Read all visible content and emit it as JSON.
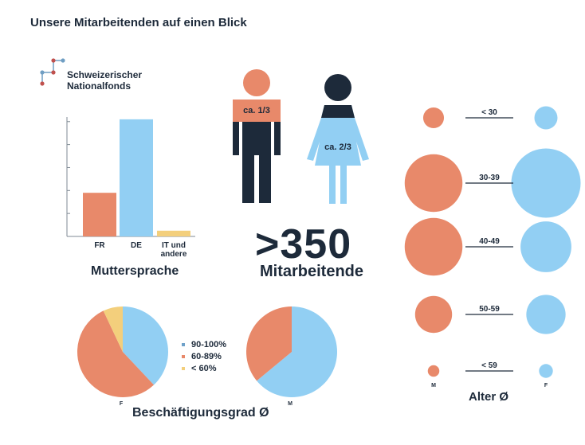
{
  "page_title": "Unsere Mitarbeitenden auf einen Blick",
  "logo": {
    "line1": "Schweizerischer",
    "line2": "Nationalfonds"
  },
  "colors": {
    "orange": "#e8896a",
    "blue": "#92cff3",
    "yellow": "#f3cf7c",
    "navy": "#1d2a3a",
    "axis": "#7f8a94"
  },
  "headcount": {
    "value": ">350",
    "label": "Mitarbeitende"
  },
  "gender": {
    "male_label": "ca. 1/3",
    "female_label": "ca. 2/3"
  },
  "chart_data": [
    {
      "type": "bar",
      "title": "Muttersprache",
      "categories": [
        "FR",
        "DE",
        "IT und andere"
      ],
      "category_lines": [
        [
          "FR"
        ],
        [
          "DE"
        ],
        [
          "IT und",
          "andere"
        ]
      ],
      "values": [
        19,
        51,
        2.5
      ],
      "colors": [
        "#e8896a",
        "#92cff3",
        "#f3cf7c"
      ],
      "ylim": [
        0,
        52
      ],
      "ytick_values": [
        10,
        20,
        30,
        40,
        50
      ]
    },
    {
      "type": "pie",
      "title": "Beschäftigungsgrad Ø",
      "legend": [
        "90-100%",
        "60-89%",
        "< 60%"
      ],
      "legend_colors": [
        "#6fa1c9",
        "#e8896a",
        "#f3cf7c"
      ],
      "pies": [
        {
          "label": "F",
          "values": [
            38,
            55,
            7
          ],
          "colors": [
            "#92cff3",
            "#e8896a",
            "#f3cf7c"
          ]
        },
        {
          "label": "M",
          "values": [
            64,
            36
          ],
          "colors": [
            "#92cff3",
            "#e8896a"
          ]
        }
      ]
    },
    {
      "type": "bubble",
      "title": "Alter Ø",
      "categories": [
        "< 30",
        "30-39",
        "40-49",
        "50-59",
        "< 59"
      ],
      "series": [
        {
          "name": "M",
          "values": [
            9,
            25,
            25,
            16,
            5
          ]
        },
        {
          "name": "F",
          "values": [
            10,
            30,
            22,
            17,
            6
          ]
        }
      ]
    }
  ]
}
